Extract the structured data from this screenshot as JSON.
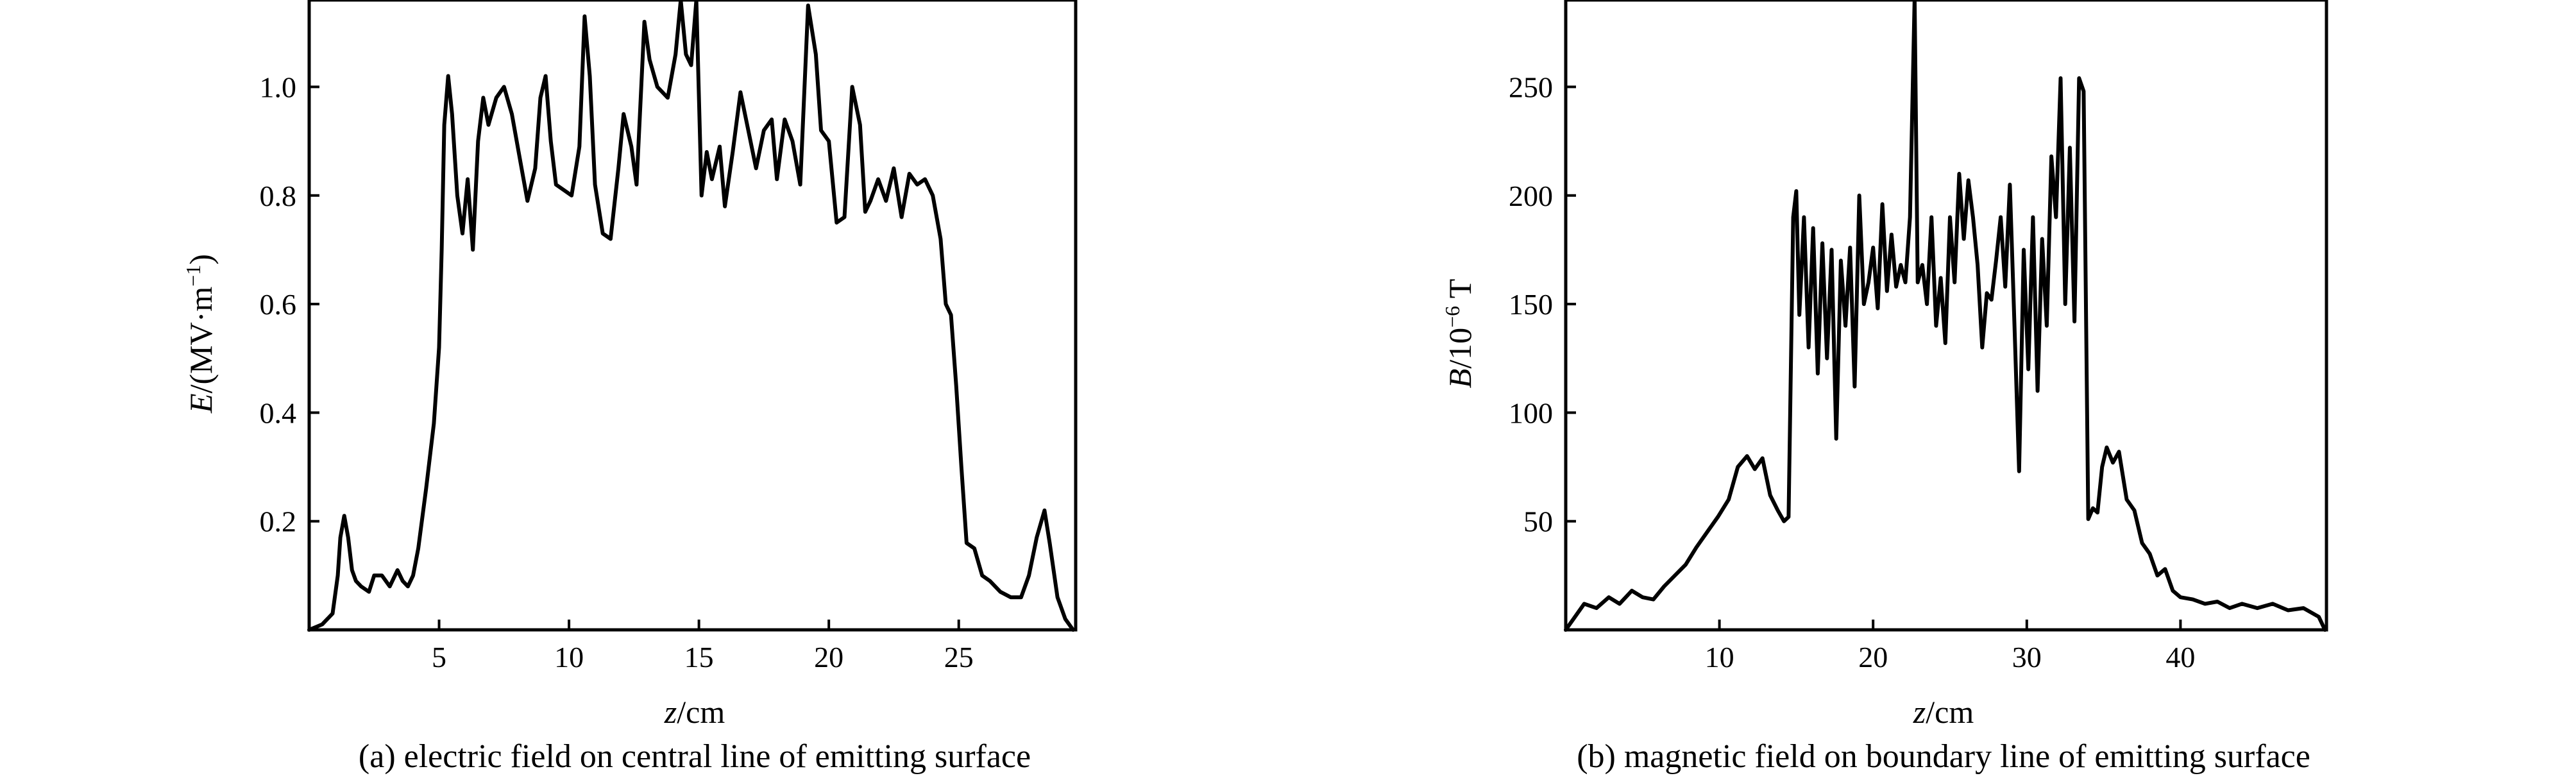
{
  "chart_data": [
    {
      "type": "line",
      "xlim": [
        0,
        29.5
      ],
      "ylim": [
        0,
        1.16
      ],
      "x_ticks": [
        "5",
        "10",
        "15",
        "20",
        "25"
      ],
      "y_ticks": [
        "0.2",
        "0.4",
        "0.6",
        "0.8",
        "1.0"
      ],
      "y_label_italic": "E",
      "y_label_rest": "/(MV·m",
      "y_label_sup": "−1",
      "y_label_close": ")",
      "x_label_italic": "z",
      "x_label_rest": "/cm",
      "caption": "(a) electric field on central line of emitting surface",
      "grid": false,
      "series": [
        {
          "x": [
            0,
            0.5,
            0.9,
            1.1,
            1.2,
            1.35,
            1.5,
            1.65,
            1.8,
            2.0,
            2.3,
            2.5,
            2.8,
            3.1,
            3.4,
            3.6,
            3.8,
            4.0,
            4.2,
            4.5,
            4.8,
            5.0,
            5.1,
            5.2,
            5.35,
            5.5,
            5.7,
            5.9,
            6.1,
            6.3,
            6.5,
            6.7,
            6.9,
            7.2,
            7.5,
            7.8,
            8.1,
            8.4,
            8.7,
            8.9,
            9.1,
            9.3,
            9.5,
            9.8,
            10.1,
            10.4,
            10.6,
            10.8,
            11.0,
            11.3,
            11.6,
            11.9,
            12.1,
            12.4,
            12.6,
            12.9,
            13.1,
            13.4,
            13.8,
            14.1,
            14.3,
            14.5,
            14.7,
            14.9,
            15.1,
            15.3,
            15.5,
            15.8,
            16.0,
            16.3,
            16.6,
            16.9,
            17.2,
            17.5,
            17.8,
            18.0,
            18.3,
            18.6,
            18.9,
            19.2,
            19.5,
            19.7,
            20.0,
            20.3,
            20.6,
            20.9,
            21.2,
            21.4,
            21.6,
            21.9,
            22.2,
            22.5,
            22.8,
            23.1,
            23.4,
            23.7,
            24.0,
            24.3,
            24.5,
            24.7,
            24.9,
            25.1,
            25.3,
            25.6,
            25.9,
            26.2,
            26.6,
            27.0,
            27.4,
            27.7,
            28.0,
            28.3,
            28.5,
            28.8,
            29.1,
            29.4
          ],
          "y": [
            0.0,
            0.01,
            0.03,
            0.1,
            0.17,
            0.21,
            0.17,
            0.11,
            0.09,
            0.08,
            0.07,
            0.1,
            0.1,
            0.08,
            0.11,
            0.09,
            0.08,
            0.1,
            0.15,
            0.26,
            0.38,
            0.52,
            0.7,
            0.93,
            1.02,
            0.95,
            0.8,
            0.73,
            0.83,
            0.7,
            0.9,
            0.98,
            0.93,
            0.98,
            1.0,
            0.95,
            0.87,
            0.79,
            0.85,
            0.98,
            1.02,
            0.9,
            0.82,
            0.81,
            0.8,
            0.89,
            1.13,
            1.02,
            0.82,
            0.73,
            0.72,
            0.85,
            0.95,
            0.89,
            0.82,
            1.12,
            1.05,
            1.0,
            0.98,
            1.06,
            1.16,
            1.06,
            1.04,
            1.16,
            0.8,
            0.88,
            0.83,
            0.89,
            0.78,
            0.88,
            0.99,
            0.92,
            0.85,
            0.92,
            0.94,
            0.83,
            0.94,
            0.9,
            0.82,
            1.15,
            1.06,
            0.92,
            0.9,
            0.75,
            0.76,
            1.0,
            0.93,
            0.77,
            0.79,
            0.83,
            0.79,
            0.85,
            0.76,
            0.84,
            0.82,
            0.83,
            0.8,
            0.72,
            0.6,
            0.58,
            0.45,
            0.3,
            0.16,
            0.15,
            0.1,
            0.09,
            0.07,
            0.06,
            0.06,
            0.1,
            0.17,
            0.22,
            0.16,
            0.06,
            0.02,
            0.0
          ]
        }
      ]
    },
    {
      "type": "line",
      "xlim": [
        0,
        49.5
      ],
      "ylim": [
        0,
        290
      ],
      "x_ticks": [
        "10",
        "20",
        "30",
        "40"
      ],
      "y_ticks": [
        "50",
        "100",
        "150",
        "200",
        "250"
      ],
      "y_label_italic": "B",
      "y_label_rest": "/10",
      "y_label_sup": "−6",
      "y_label_close": " T",
      "x_label_italic": "z",
      "x_label_rest": "/cm",
      "caption": "(b) magnetic field on boundary line of emitting surface",
      "grid": false,
      "series": [
        {
          "x": [
            0,
            0.5,
            1.2,
            2.0,
            2.8,
            3.5,
            4.3,
            5.0,
            5.7,
            6.4,
            7.1,
            7.8,
            8.5,
            9.2,
            9.9,
            10.6,
            11.2,
            11.8,
            12.3,
            12.8,
            13.3,
            13.8,
            14.2,
            14.5,
            14.8,
            15.0,
            15.2,
            15.5,
            15.8,
            16.1,
            16.4,
            16.7,
            17.0,
            17.3,
            17.6,
            17.9,
            18.2,
            18.5,
            18.8,
            19.1,
            19.4,
            19.7,
            20.0,
            20.3,
            20.6,
            20.9,
            21.2,
            21.5,
            21.8,
            22.1,
            22.4,
            22.7,
            22.9,
            23.2,
            23.5,
            23.8,
            24.1,
            24.4,
            24.7,
            25.0,
            25.3,
            25.6,
            25.9,
            26.2,
            26.5,
            26.8,
            27.1,
            27.4,
            27.7,
            28.0,
            28.3,
            28.6,
            28.9,
            29.2,
            29.5,
            29.8,
            30.1,
            30.4,
            30.7,
            31.0,
            31.3,
            31.6,
            31.9,
            32.2,
            32.5,
            32.8,
            33.1,
            33.4,
            33.7,
            34.0,
            34.3,
            34.6,
            34.9,
            35.2,
            35.6,
            36.0,
            36.5,
            37.0,
            37.5,
            38.0,
            38.5,
            39.0,
            39.5,
            40.0,
            40.8,
            41.6,
            42.4,
            43.2,
            44.0,
            45.0,
            46.0,
            47.0,
            48.0,
            49.0,
            49.4
          ],
          "y": [
            0,
            5,
            12,
            10,
            15,
            12,
            18,
            15,
            14,
            20,
            25,
            30,
            38,
            45,
            52,
            60,
            75,
            80,
            74,
            79,
            62,
            55,
            50,
            52,
            190,
            202,
            145,
            190,
            130,
            185,
            118,
            178,
            125,
            175,
            88,
            170,
            140,
            176,
            112,
            200,
            150,
            160,
            176,
            148,
            196,
            156,
            182,
            158,
            168,
            160,
            190,
            291,
            160,
            168,
            150,
            190,
            140,
            162,
            132,
            190,
            160,
            210,
            180,
            207,
            190,
            168,
            130,
            155,
            152,
            170,
            190,
            158,
            205,
            140,
            73,
            175,
            120,
            190,
            110,
            180,
            140,
            218,
            190,
            254,
            150,
            222,
            142,
            254,
            248,
            51,
            56,
            54,
            75,
            84,
            77,
            82,
            60,
            55,
            40,
            35,
            25,
            28,
            18,
            15,
            14,
            12,
            13,
            10,
            12,
            10,
            12,
            9,
            10,
            6,
            0
          ]
        }
      ]
    }
  ]
}
